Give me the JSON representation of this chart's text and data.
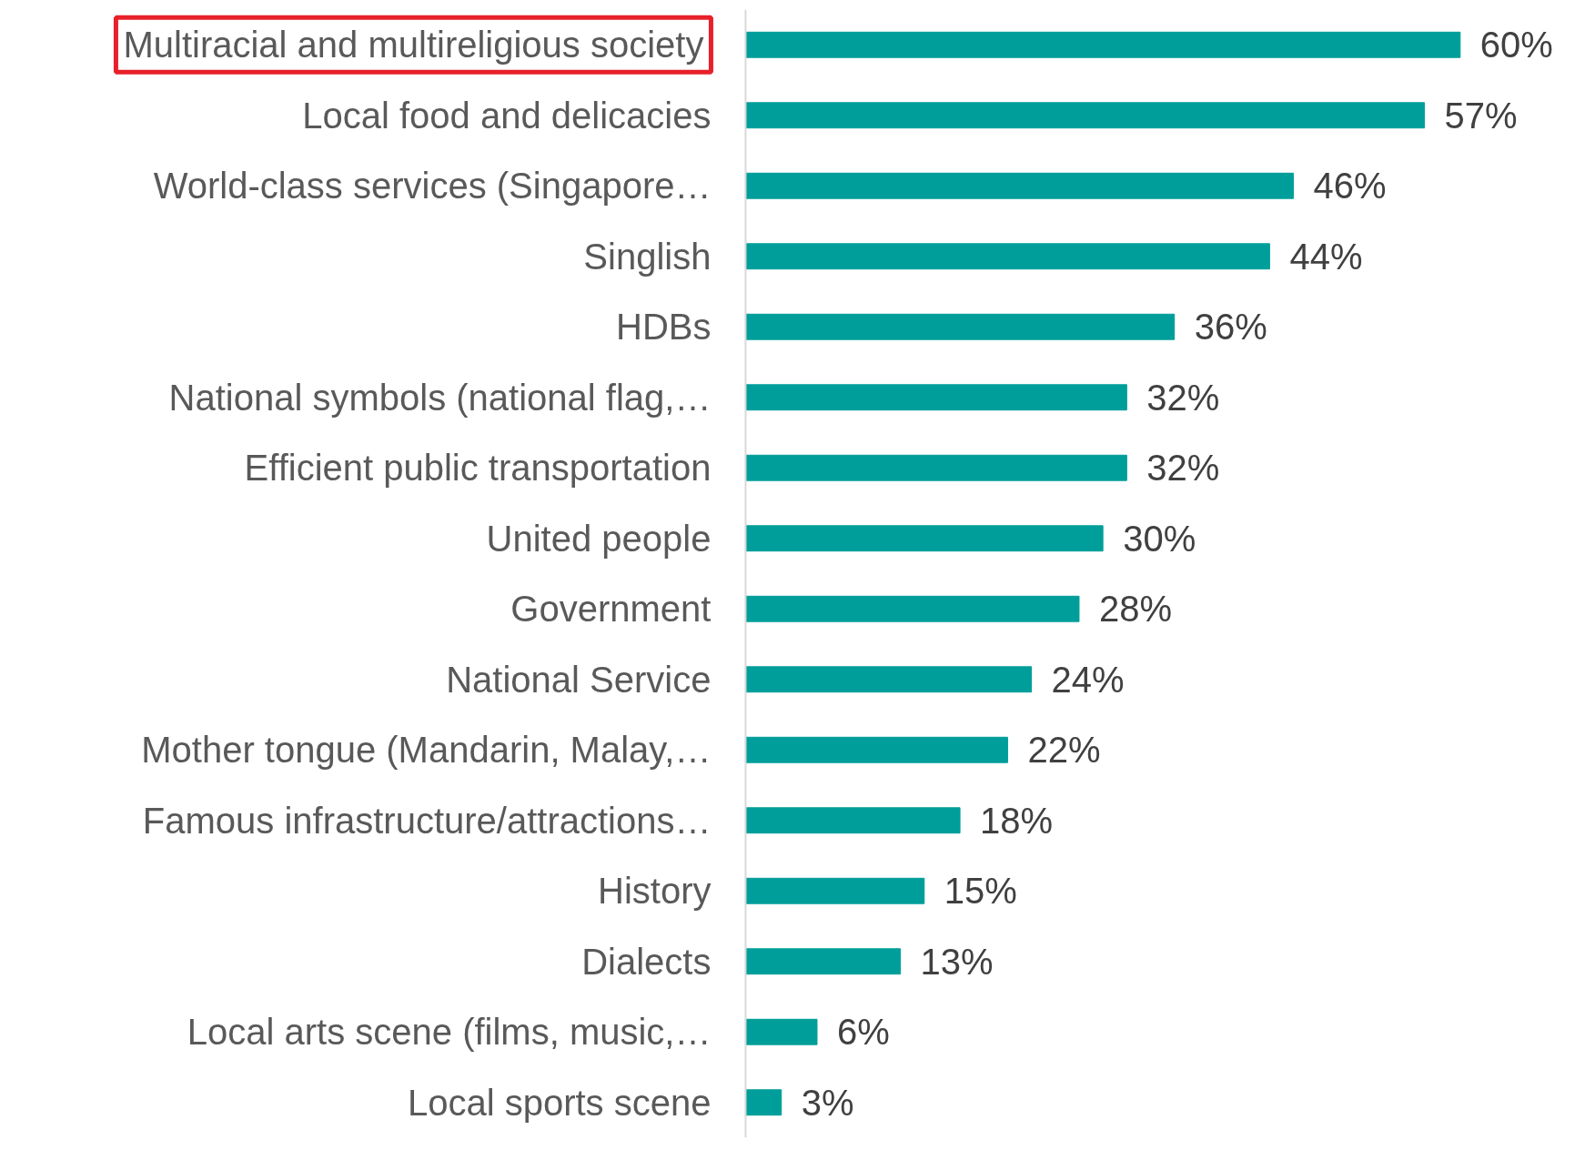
{
  "chart_data": {
    "type": "bar",
    "orientation": "horizontal",
    "data_labels": true,
    "grid": false,
    "categories": [
      "Multiracial and multireligious society",
      "Local food and delicacies",
      "World-class services (Singapore…",
      "Singlish",
      "HDBs",
      "National symbols (national flag,…",
      "Efficient public transportation",
      "United people",
      "Government",
      "National Service",
      "Mother tongue (Mandarin, Malay,…",
      "Famous infrastructure/attractions…",
      "History",
      "Dialects",
      "Local arts scene (films, music,…",
      "Local sports scene"
    ],
    "values": [
      60,
      57,
      46,
      44,
      36,
      32,
      32,
      30,
      28,
      24,
      22,
      18,
      15,
      13,
      6,
      3
    ],
    "value_labels": [
      "60%",
      "57%",
      "46%",
      "44%",
      "36%",
      "32%",
      "32%",
      "30%",
      "28%",
      "24%",
      "22%",
      "18%",
      "15%",
      "13%",
      "6%",
      "3%"
    ],
    "color": "#009e9a"
  }
}
